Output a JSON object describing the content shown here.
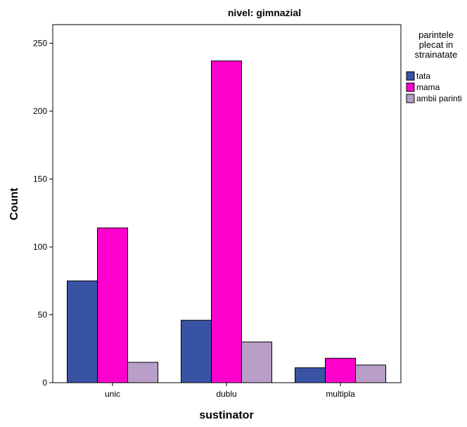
{
  "chart_data": {
    "type": "bar",
    "title": "nivel: gimnazial",
    "xlabel": "sustinator",
    "ylabel": "Count",
    "categories": [
      "unic",
      "dublu",
      "multipla"
    ],
    "series": [
      {
        "name": "tata",
        "values": [
          75,
          46,
          11
        ],
        "color": "#3953a4"
      },
      {
        "name": "mama",
        "values": [
          114,
          237,
          18
        ],
        "color": "#ff00cc"
      },
      {
        "name": "ambii parinti",
        "values": [
          15,
          30,
          13
        ],
        "color": "#b89ec8"
      }
    ],
    "ylim": [
      0,
      262
    ],
    "yticks": [
      0,
      50,
      100,
      150,
      200,
      250
    ],
    "legend": {
      "title_lines": [
        "parintele",
        "plecat in",
        "strainatate"
      ],
      "placement": "right"
    },
    "grid": false
  }
}
